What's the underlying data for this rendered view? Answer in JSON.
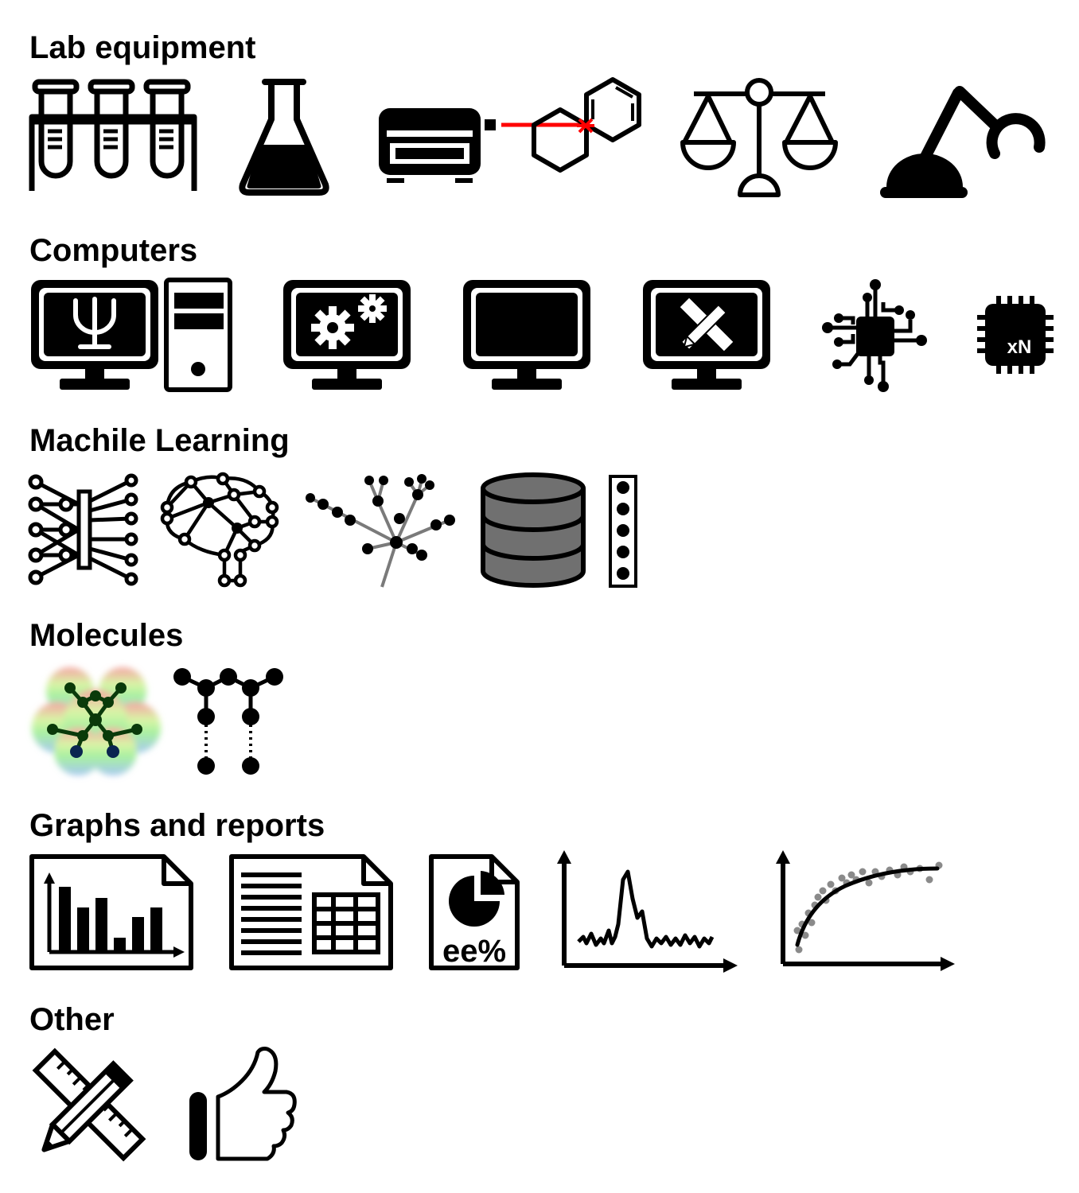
{
  "sections": {
    "lab": {
      "title": "Lab equipment"
    },
    "computers": {
      "title": "Computers",
      "cpu_label": "xN"
    },
    "ml": {
      "title": "Machile Learning"
    },
    "molecules": {
      "title": "Molecules"
    },
    "graphs": {
      "title": "Graphs and reports",
      "report_label": "ee%"
    },
    "other": {
      "title": "Other"
    }
  },
  "icons": {
    "lab": [
      "test-tubes-icon",
      "flask-icon",
      "laser-spectrometer-icon",
      "naphthalene-icon",
      "balance-scale-icon",
      "robot-arm-icon"
    ],
    "computers": [
      "psi-computer-tower-icon",
      "gears-monitor-icon",
      "blank-monitor-icon",
      "design-monitor-icon",
      "circuit-chip-icon",
      "cpu-xn-icon"
    ],
    "ml": [
      "neural-chip-icon",
      "network-brain-icon",
      "tree-graph-icon",
      "database-icon",
      "vector-column-icon"
    ],
    "molecules": [
      "electrostatic-molecule-icon",
      "molecular-graph-icon"
    ],
    "graphs": [
      "bar-chart-document-icon",
      "table-document-icon",
      "ee-percent-document-icon",
      "spectrum-peak-icon",
      "curve-fit-icon"
    ],
    "other": [
      "ruler-pencil-icon",
      "thumbs-up-icon"
    ]
  },
  "colors": {
    "icon": "#000000",
    "laser": "#ff0000",
    "database": "#707070",
    "neural_link": "#7a7a7a",
    "scatter_point": "#8a8a8a"
  }
}
